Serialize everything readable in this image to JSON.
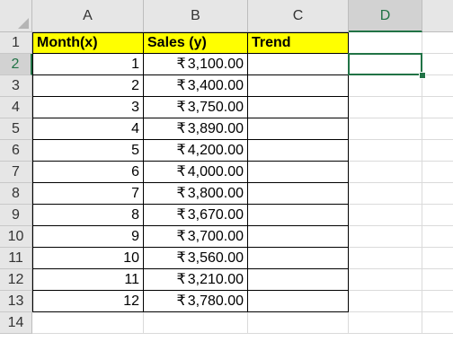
{
  "sheet": {
    "columns": [
      "A",
      "B",
      "C",
      "D"
    ],
    "rows": [
      "1",
      "2",
      "3",
      "4",
      "5",
      "6",
      "7",
      "8",
      "9",
      "10",
      "11",
      "12",
      "13",
      "14"
    ],
    "selected_column": "D",
    "selected_row": "2",
    "active_cell": "D2",
    "accent_color": "#217346",
    "header_fill_color": "#ffff00"
  },
  "table": {
    "headers": [
      "Month(x)",
      "Sales (y)",
      "Trend"
    ],
    "currency_symbol": "₹",
    "rows": [
      {
        "month": "1",
        "sales": "3,100.00",
        "trend": ""
      },
      {
        "month": "2",
        "sales": "3,400.00",
        "trend": ""
      },
      {
        "month": "3",
        "sales": "3,750.00",
        "trend": ""
      },
      {
        "month": "4",
        "sales": "3,890.00",
        "trend": ""
      },
      {
        "month": "5",
        "sales": "4,200.00",
        "trend": ""
      },
      {
        "month": "6",
        "sales": "4,000.00",
        "trend": ""
      },
      {
        "month": "7",
        "sales": "3,800.00",
        "trend": ""
      },
      {
        "month": "8",
        "sales": "3,670.00",
        "trend": ""
      },
      {
        "month": "9",
        "sales": "3,700.00",
        "trend": ""
      },
      {
        "month": "10",
        "sales": "3,560.00",
        "trend": ""
      },
      {
        "month": "11",
        "sales": "3,210.00",
        "trend": ""
      },
      {
        "month": "12",
        "sales": "3,780.00",
        "trend": ""
      }
    ]
  }
}
